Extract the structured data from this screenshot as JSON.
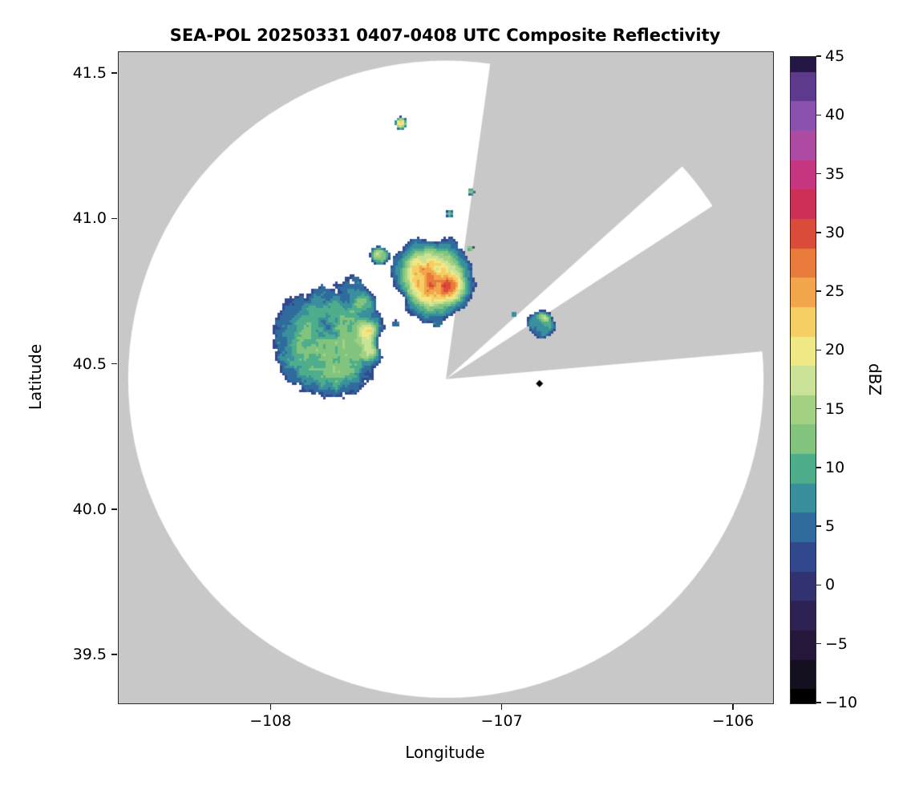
{
  "chart_data": {
    "type": "heatmap",
    "title": "SEA-POL 20250331 0407-0408 UTC Composite Reflectivity",
    "xlabel": "Longitude",
    "ylabel": "Latitude",
    "xlim": [
      -108.66,
      -105.83
    ],
    "ylim": [
      39.335,
      41.575
    ],
    "grid": false,
    "xticks": [
      {
        "value": -108,
        "label": "−108"
      },
      {
        "value": -107,
        "label": "−107"
      },
      {
        "value": -106,
        "label": "−106"
      }
    ],
    "yticks": [
      {
        "value": 41.5,
        "label": "41.5"
      },
      {
        "value": 41.0,
        "label": "41.0"
      },
      {
        "value": 40.5,
        "label": "40.5"
      },
      {
        "value": 40.0,
        "label": "40.0"
      },
      {
        "value": 39.5,
        "label": "39.5"
      }
    ],
    "colorbar": {
      "label": "dBZ",
      "min": -10,
      "max": 45,
      "ticks": [
        {
          "value": 45,
          "label": "45"
        },
        {
          "value": 40,
          "label": "40"
        },
        {
          "value": 35,
          "label": "35"
        },
        {
          "value": 30,
          "label": "30"
        },
        {
          "value": 25,
          "label": "25"
        },
        {
          "value": 20,
          "label": "20"
        },
        {
          "value": 15,
          "label": "15"
        },
        {
          "value": 10,
          "label": "10"
        },
        {
          "value": 5,
          "label": "5"
        },
        {
          "value": 0,
          "label": "0"
        },
        {
          "value": -5,
          "label": "−5"
        },
        {
          "value": -10,
          "label": "−10"
        }
      ]
    },
    "colormap": {
      "quantize_step": 2.5,
      "stops": [
        [
          -10.0,
          "#000000"
        ],
        [
          -7.5,
          "#15101f"
        ],
        [
          -5.0,
          "#251739"
        ],
        [
          -2.5,
          "#2e2254"
        ],
        [
          0.0,
          "#333270"
        ],
        [
          2.5,
          "#32488c"
        ],
        [
          5.0,
          "#2f6b9d"
        ],
        [
          7.5,
          "#398f9b"
        ],
        [
          10.0,
          "#4ead8b"
        ],
        [
          12.5,
          "#82c47e"
        ],
        [
          15.0,
          "#a3d184"
        ],
        [
          17.5,
          "#c9e295"
        ],
        [
          20.0,
          "#f0e884"
        ],
        [
          22.5,
          "#f5cf63"
        ],
        [
          25.0,
          "#f2a54b"
        ],
        [
          27.5,
          "#e87a3b"
        ],
        [
          30.0,
          "#da4b3a"
        ],
        [
          32.5,
          "#cc3056"
        ],
        [
          35.0,
          "#c53580"
        ],
        [
          37.5,
          "#ad4ba3"
        ],
        [
          40.0,
          "#8a52ae"
        ],
        [
          42.5,
          "#5e3a8c"
        ],
        [
          45.0,
          "#251745"
        ]
      ]
    },
    "radar": {
      "center_lon": -107.245,
      "center_lat": 40.45,
      "radius_lon_deg": 1.374,
      "radius_lat_deg": 1.096,
      "blocked_sectors_deg": [
        [
          8,
          48
        ],
        [
          57,
          85
        ]
      ],
      "outside_color": "#c8c8c8",
      "coverage_color": "#ffffff"
    },
    "marker": {
      "lon": -106.84,
      "lat": 40.435,
      "shape": "diamond",
      "color": "#000000"
    },
    "echo_regions": [
      {
        "name": "west-cell",
        "center_lon": -107.76,
        "center_lat": 40.575,
        "rx_deg": 0.295,
        "ry_deg": 0.245,
        "base_dbz": 11.5,
        "noise_amp_dbz": 4,
        "seed": 7,
        "hotspots": [
          {
            "lon": -107.575,
            "lat": 40.615,
            "r_deg": 0.05,
            "dbz_delta": 14
          },
          {
            "lon": -107.565,
            "lat": 40.545,
            "r_deg": 0.045,
            "dbz_delta": 12
          },
          {
            "lon": -107.595,
            "lat": 40.72,
            "r_deg": 0.055,
            "dbz_delta": 11
          },
          {
            "lon": -107.64,
            "lat": 40.79,
            "r_deg": 0.05,
            "dbz_delta": 8
          },
          {
            "lon": -107.52,
            "lat": 40.575,
            "r_deg": 0.04,
            "dbz_delta": -9
          },
          {
            "lon": -107.77,
            "lat": 40.635,
            "r_deg": 0.05,
            "dbz_delta": -5
          },
          {
            "lon": -107.7,
            "lat": 40.47,
            "r_deg": 0.07,
            "dbz_delta": 3
          }
        ]
      },
      {
        "name": "west-cell-north-appendage",
        "center_lon": -107.53,
        "center_lat": 40.875,
        "rx_deg": 0.055,
        "ry_deg": 0.042,
        "base_dbz": 12,
        "noise_amp_dbz": 4,
        "seed": 11,
        "hotspots": [
          {
            "lon": -107.55,
            "lat": 40.885,
            "r_deg": 0.025,
            "dbz_delta": 4
          }
        ]
      },
      {
        "name": "central-cell",
        "center_lon": -107.305,
        "center_lat": 40.8,
        "rx_deg": 0.19,
        "ry_deg": 0.16,
        "base_dbz": 16.5,
        "noise_amp_dbz": 5,
        "seed": 3,
        "hotspots": [
          {
            "lon": -107.305,
            "lat": 40.775,
            "r_deg": 0.085,
            "dbz_delta": 10
          },
          {
            "lon": -107.215,
            "lat": 40.765,
            "r_deg": 0.055,
            "dbz_delta": 10
          },
          {
            "lon": -107.37,
            "lat": 40.835,
            "r_deg": 0.05,
            "dbz_delta": 5
          },
          {
            "lon": -107.3,
            "lat": 40.935,
            "r_deg": 0.05,
            "dbz_delta": -4
          },
          {
            "lon": -107.44,
            "lat": 40.73,
            "r_deg": 0.04,
            "dbz_delta": -7
          }
        ]
      },
      {
        "name": "central-cell-south-specks",
        "center_lon": -107.28,
        "center_lat": 40.645,
        "rx_deg": 0.045,
        "ry_deg": 0.03,
        "base_dbz": 6,
        "noise_amp_dbz": 4,
        "seed": 17,
        "hotspots": []
      },
      {
        "name": "east-cell",
        "center_lon": -106.835,
        "center_lat": 40.635,
        "rx_deg": 0.095,
        "ry_deg": 0.07,
        "base_dbz": 8.5,
        "noise_amp_dbz": 5,
        "seed": 23,
        "hotspots": [
          {
            "lon": -106.82,
            "lat": 40.665,
            "r_deg": 0.028,
            "dbz_delta": 9
          },
          {
            "lon": -106.865,
            "lat": 40.605,
            "r_deg": 0.03,
            "dbz_delta": -4
          }
        ]
      },
      {
        "name": "north-spot",
        "center_lon": -107.44,
        "center_lat": 41.33,
        "rx_deg": 0.028,
        "ry_deg": 0.022,
        "base_dbz": 19,
        "noise_amp_dbz": 4,
        "seed": 31,
        "hotspots": [
          {
            "lon": -107.445,
            "lat": 41.335,
            "r_deg": 0.012,
            "dbz_delta": 4
          }
        ]
      },
      {
        "name": "speck-a",
        "center_lon": -107.135,
        "center_lat": 41.095,
        "rx_deg": 0.02,
        "ry_deg": 0.016,
        "base_dbz": 12,
        "noise_amp_dbz": 3,
        "seed": 37,
        "hotspots": []
      },
      {
        "name": "speck-b",
        "center_lon": -107.23,
        "center_lat": 41.02,
        "rx_deg": 0.022,
        "ry_deg": 0.017,
        "base_dbz": 12,
        "noise_amp_dbz": 3,
        "seed": 41,
        "hotspots": []
      },
      {
        "name": "speck-c",
        "center_lon": -107.46,
        "center_lat": 40.64,
        "rx_deg": 0.03,
        "ry_deg": 0.02,
        "base_dbz": 6,
        "noise_amp_dbz": 4,
        "seed": 43,
        "hotspots": []
      },
      {
        "name": "speck-d",
        "center_lon": -106.95,
        "center_lat": 40.675,
        "rx_deg": 0.018,
        "ry_deg": 0.014,
        "base_dbz": 9,
        "noise_amp_dbz": 4,
        "seed": 47,
        "hotspots": []
      },
      {
        "name": "speck-e",
        "center_lon": -107.14,
        "center_lat": 40.9,
        "rx_deg": 0.018,
        "ry_deg": 0.014,
        "base_dbz": 13,
        "noise_amp_dbz": 3,
        "seed": 53,
        "hotspots": []
      }
    ]
  }
}
